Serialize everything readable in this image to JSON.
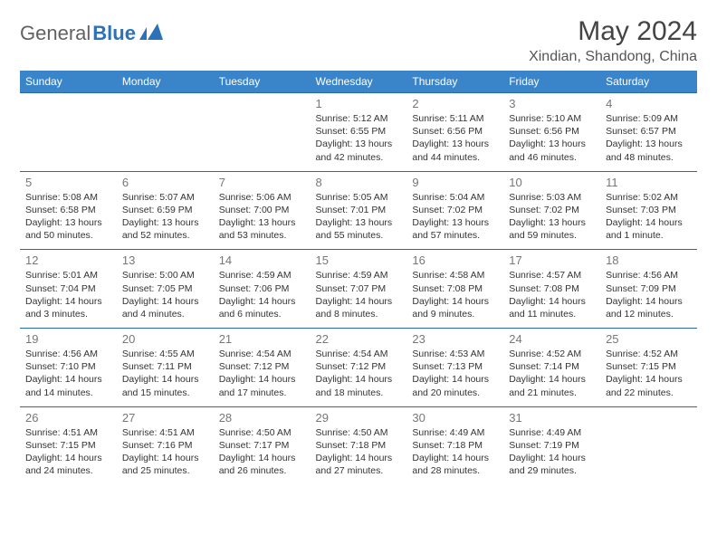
{
  "logo": {
    "text1": "General",
    "text2": "Blue"
  },
  "title": "May 2024",
  "location": "Xindian, Shandong, China",
  "header_bg": "#3a85c9",
  "weekdays": [
    "Sunday",
    "Monday",
    "Tuesday",
    "Wednesday",
    "Thursday",
    "Friday",
    "Saturday"
  ],
  "weeks": [
    [
      {
        "day": "",
        "sunrise": "",
        "sunset": "",
        "daylight": ""
      },
      {
        "day": "",
        "sunrise": "",
        "sunset": "",
        "daylight": ""
      },
      {
        "day": "",
        "sunrise": "",
        "sunset": "",
        "daylight": ""
      },
      {
        "day": "1",
        "sunrise": "Sunrise: 5:12 AM",
        "sunset": "Sunset: 6:55 PM",
        "daylight": "Daylight: 13 hours and 42 minutes."
      },
      {
        "day": "2",
        "sunrise": "Sunrise: 5:11 AM",
        "sunset": "Sunset: 6:56 PM",
        "daylight": "Daylight: 13 hours and 44 minutes."
      },
      {
        "day": "3",
        "sunrise": "Sunrise: 5:10 AM",
        "sunset": "Sunset: 6:56 PM",
        "daylight": "Daylight: 13 hours and 46 minutes."
      },
      {
        "day": "4",
        "sunrise": "Sunrise: 5:09 AM",
        "sunset": "Sunset: 6:57 PM",
        "daylight": "Daylight: 13 hours and 48 minutes."
      }
    ],
    [
      {
        "day": "5",
        "sunrise": "Sunrise: 5:08 AM",
        "sunset": "Sunset: 6:58 PM",
        "daylight": "Daylight: 13 hours and 50 minutes."
      },
      {
        "day": "6",
        "sunrise": "Sunrise: 5:07 AM",
        "sunset": "Sunset: 6:59 PM",
        "daylight": "Daylight: 13 hours and 52 minutes."
      },
      {
        "day": "7",
        "sunrise": "Sunrise: 5:06 AM",
        "sunset": "Sunset: 7:00 PM",
        "daylight": "Daylight: 13 hours and 53 minutes."
      },
      {
        "day": "8",
        "sunrise": "Sunrise: 5:05 AM",
        "sunset": "Sunset: 7:01 PM",
        "daylight": "Daylight: 13 hours and 55 minutes."
      },
      {
        "day": "9",
        "sunrise": "Sunrise: 5:04 AM",
        "sunset": "Sunset: 7:02 PM",
        "daylight": "Daylight: 13 hours and 57 minutes."
      },
      {
        "day": "10",
        "sunrise": "Sunrise: 5:03 AM",
        "sunset": "Sunset: 7:02 PM",
        "daylight": "Daylight: 13 hours and 59 minutes."
      },
      {
        "day": "11",
        "sunrise": "Sunrise: 5:02 AM",
        "sunset": "Sunset: 7:03 PM",
        "daylight": "Daylight: 14 hours and 1 minute."
      }
    ],
    [
      {
        "day": "12",
        "sunrise": "Sunrise: 5:01 AM",
        "sunset": "Sunset: 7:04 PM",
        "daylight": "Daylight: 14 hours and 3 minutes."
      },
      {
        "day": "13",
        "sunrise": "Sunrise: 5:00 AM",
        "sunset": "Sunset: 7:05 PM",
        "daylight": "Daylight: 14 hours and 4 minutes."
      },
      {
        "day": "14",
        "sunrise": "Sunrise: 4:59 AM",
        "sunset": "Sunset: 7:06 PM",
        "daylight": "Daylight: 14 hours and 6 minutes."
      },
      {
        "day": "15",
        "sunrise": "Sunrise: 4:59 AM",
        "sunset": "Sunset: 7:07 PM",
        "daylight": "Daylight: 14 hours and 8 minutes."
      },
      {
        "day": "16",
        "sunrise": "Sunrise: 4:58 AM",
        "sunset": "Sunset: 7:08 PM",
        "daylight": "Daylight: 14 hours and 9 minutes."
      },
      {
        "day": "17",
        "sunrise": "Sunrise: 4:57 AM",
        "sunset": "Sunset: 7:08 PM",
        "daylight": "Daylight: 14 hours and 11 minutes."
      },
      {
        "day": "18",
        "sunrise": "Sunrise: 4:56 AM",
        "sunset": "Sunset: 7:09 PM",
        "daylight": "Daylight: 14 hours and 12 minutes."
      }
    ],
    [
      {
        "day": "19",
        "sunrise": "Sunrise: 4:56 AM",
        "sunset": "Sunset: 7:10 PM",
        "daylight": "Daylight: 14 hours and 14 minutes."
      },
      {
        "day": "20",
        "sunrise": "Sunrise: 4:55 AM",
        "sunset": "Sunset: 7:11 PM",
        "daylight": "Daylight: 14 hours and 15 minutes."
      },
      {
        "day": "21",
        "sunrise": "Sunrise: 4:54 AM",
        "sunset": "Sunset: 7:12 PM",
        "daylight": "Daylight: 14 hours and 17 minutes."
      },
      {
        "day": "22",
        "sunrise": "Sunrise: 4:54 AM",
        "sunset": "Sunset: 7:12 PM",
        "daylight": "Daylight: 14 hours and 18 minutes."
      },
      {
        "day": "23",
        "sunrise": "Sunrise: 4:53 AM",
        "sunset": "Sunset: 7:13 PM",
        "daylight": "Daylight: 14 hours and 20 minutes."
      },
      {
        "day": "24",
        "sunrise": "Sunrise: 4:52 AM",
        "sunset": "Sunset: 7:14 PM",
        "daylight": "Daylight: 14 hours and 21 minutes."
      },
      {
        "day": "25",
        "sunrise": "Sunrise: 4:52 AM",
        "sunset": "Sunset: 7:15 PM",
        "daylight": "Daylight: 14 hours and 22 minutes."
      }
    ],
    [
      {
        "day": "26",
        "sunrise": "Sunrise: 4:51 AM",
        "sunset": "Sunset: 7:15 PM",
        "daylight": "Daylight: 14 hours and 24 minutes."
      },
      {
        "day": "27",
        "sunrise": "Sunrise: 4:51 AM",
        "sunset": "Sunset: 7:16 PM",
        "daylight": "Daylight: 14 hours and 25 minutes."
      },
      {
        "day": "28",
        "sunrise": "Sunrise: 4:50 AM",
        "sunset": "Sunset: 7:17 PM",
        "daylight": "Daylight: 14 hours and 26 minutes."
      },
      {
        "day": "29",
        "sunrise": "Sunrise: 4:50 AM",
        "sunset": "Sunset: 7:18 PM",
        "daylight": "Daylight: 14 hours and 27 minutes."
      },
      {
        "day": "30",
        "sunrise": "Sunrise: 4:49 AM",
        "sunset": "Sunset: 7:18 PM",
        "daylight": "Daylight: 14 hours and 28 minutes."
      },
      {
        "day": "31",
        "sunrise": "Sunrise: 4:49 AM",
        "sunset": "Sunset: 7:19 PM",
        "daylight": "Daylight: 14 hours and 29 minutes."
      },
      {
        "day": "",
        "sunrise": "",
        "sunset": "",
        "daylight": ""
      }
    ]
  ]
}
